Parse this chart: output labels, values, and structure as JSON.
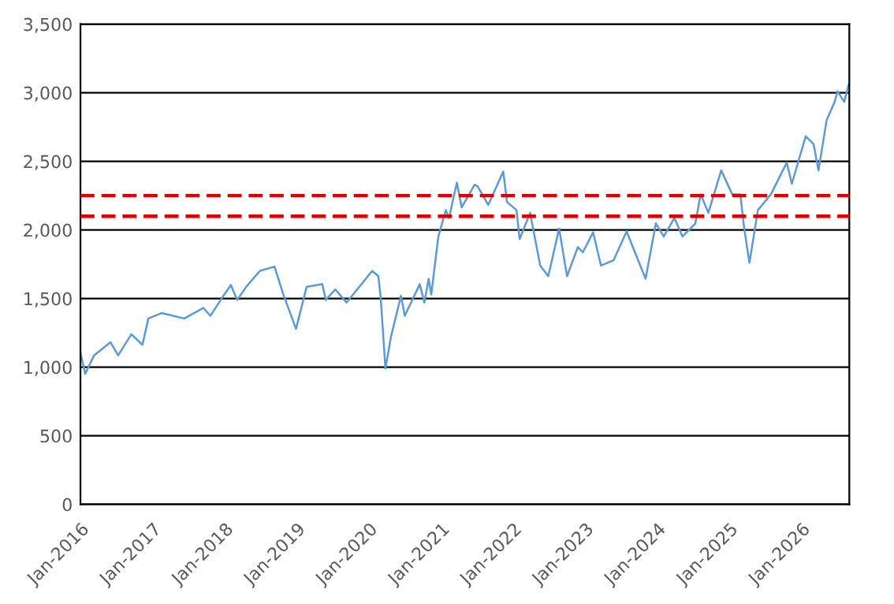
{
  "chart_data": {
    "type": "line",
    "x": [
      "2016-01-01",
      "2016-01-25",
      "2016-03-10",
      "2016-06-01",
      "2016-07-10",
      "2016-09-15",
      "2016-11-10",
      "2016-12-10",
      "2017-02-15",
      "2017-06-10",
      "2017-09-15",
      "2017-10-20",
      "2017-12-20",
      "2018-02-01",
      "2018-03-05",
      "2018-04-20",
      "2018-06-28",
      "2018-09-10",
      "2018-10-25",
      "2018-12-28",
      "2019-02-20",
      "2019-05-10",
      "2019-05-28",
      "2019-07-15",
      "2019-09-10",
      "2020-01-18",
      "2020-02-18",
      "2020-03-01",
      "2020-03-25",
      "2020-04-22",
      "2020-06-12",
      "2020-07-01",
      "2020-09-15",
      "2020-10-08",
      "2020-10-30",
      "2020-11-12",
      "2020-12-18",
      "2021-01-25",
      "2021-02-10",
      "2021-03-22",
      "2021-04-15",
      "2021-06-20",
      "2021-07-05",
      "2021-08-28",
      "2021-11-12",
      "2021-12-01",
      "2022-01-18",
      "2022-02-03",
      "2022-03-28",
      "2022-05-18",
      "2022-06-28",
      "2022-08-22",
      "2022-10-01",
      "2022-11-25",
      "2022-12-20",
      "2023-02-10",
      "2023-03-22",
      "2023-05-25",
      "2023-07-30",
      "2023-08-25",
      "2023-11-03",
      "2023-12-25",
      "2024-02-03",
      "2024-03-28",
      "2024-05-08",
      "2024-07-12",
      "2024-08-08",
      "2024-09-16",
      "2024-11-20",
      "2025-01-15",
      "2025-02-25",
      "2025-03-15",
      "2025-04-12",
      "2025-05-25",
      "2025-07-30",
      "2025-10-18",
      "2025-11-13",
      "2026-01-22",
      "2026-03-03",
      "2026-03-28",
      "2026-05-08",
      "2026-06-18",
      "2026-07-02",
      "2026-08-05",
      "2026-08-28"
    ],
    "series": [
      {
        "color": "#5b9bd5",
        "values": [
          1105,
          951,
          1086,
          1182,
          1086,
          1240,
          1163,
          1355,
          1394,
          1355,
          1432,
          1374,
          1509,
          1598,
          1490,
          1586,
          1702,
          1733,
          1529,
          1279,
          1586,
          1605,
          1490,
          1567,
          1471,
          1702,
          1663,
          1509,
          990,
          1221,
          1521,
          1374,
          1605,
          1471,
          1644,
          1529,
          1952,
          2145,
          2087,
          2345,
          2164,
          2330,
          2318,
          2183,
          2426,
          2203,
          2145,
          1933,
          2125,
          1741,
          1663,
          2010,
          1663,
          1875,
          1837,
          1983,
          1741,
          1779,
          1991,
          1894,
          1644,
          2048,
          1952,
          2087,
          1952,
          2048,
          2260,
          2125,
          2434,
          2260,
          2260,
          2029,
          1760,
          2145,
          2260,
          2491,
          2337,
          2683,
          2626,
          2434,
          2799,
          2934,
          3011,
          2934,
          3061
        ]
      }
    ],
    "xlim": [
      "2016-01-01",
      "2026-08-31"
    ],
    "xticks": [
      {
        "value": "2016-01-01",
        "label": "Jan-2016"
      },
      {
        "value": "2017-01-01",
        "label": "Jan-2017"
      },
      {
        "value": "2018-01-01",
        "label": "Jan-2018"
      },
      {
        "value": "2019-01-01",
        "label": "Jan-2019"
      },
      {
        "value": "2020-01-01",
        "label": "Jan-2020"
      },
      {
        "value": "2021-01-01",
        "label": "Jan-2021"
      },
      {
        "value": "2022-01-01",
        "label": "Jan-2022"
      },
      {
        "value": "2023-01-01",
        "label": "Jan-2023"
      },
      {
        "value": "2024-01-01",
        "label": "Jan-2024"
      },
      {
        "value": "2025-01-01",
        "label": "Jan-2025"
      },
      {
        "value": "2026-01-01",
        "label": "Jan-2026"
      }
    ],
    "ylim": [
      0,
      3500
    ],
    "yticks": [
      {
        "value": 0,
        "label": "0"
      },
      {
        "value": 500,
        "label": "500"
      },
      {
        "value": 1000,
        "label": "1,000"
      },
      {
        "value": 1500,
        "label": "1,500"
      },
      {
        "value": 2000,
        "label": "2,000"
      },
      {
        "value": 2500,
        "label": "2,500"
      },
      {
        "value": 3000,
        "label": "3,000"
      },
      {
        "value": 3500,
        "label": "3,500"
      }
    ],
    "ref_lines": [
      {
        "axis": "y",
        "value": 2250,
        "color": "#e00000",
        "line_style": "dashed"
      },
      {
        "axis": "y",
        "value": 2100,
        "color": "#e00000",
        "line_style": "dashed"
      }
    ],
    "grid": "y",
    "legend": false,
    "marker": "none",
    "line_style": "solid"
  }
}
